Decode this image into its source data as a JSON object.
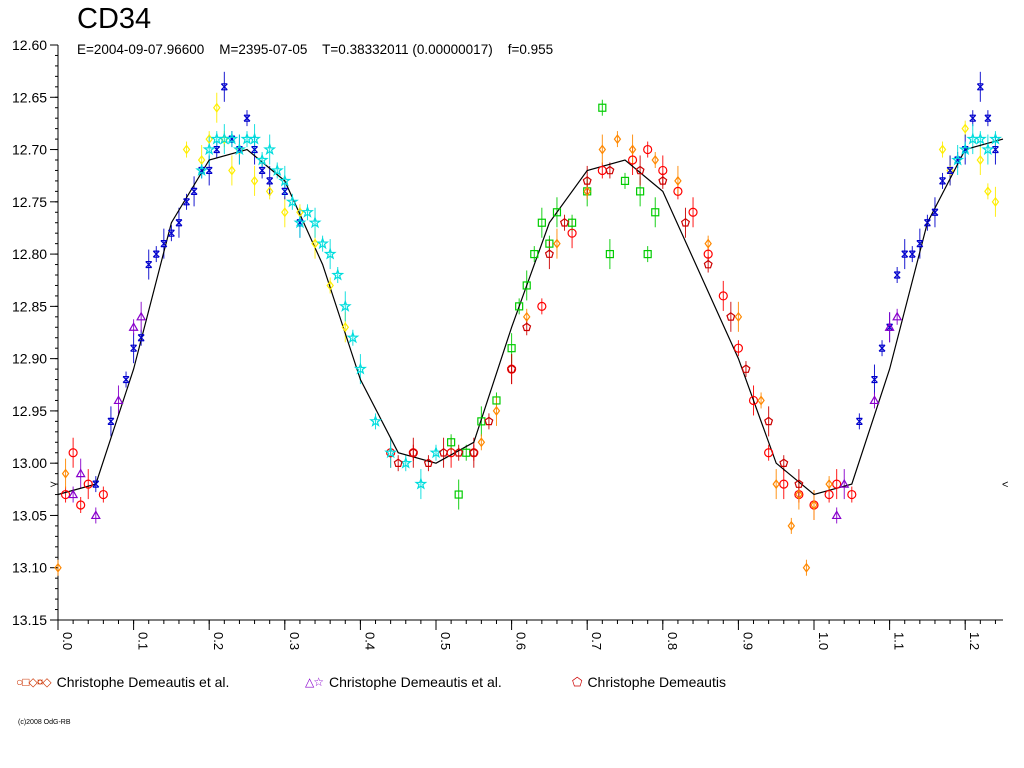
{
  "header": {
    "title": "CD34",
    "subtitle": "E=2004-09-07.96600    M=2395-07-05    T=0.38332011 (0.00000017)    f=0.955"
  },
  "legend": [
    {
      "symbols": "○□◇¤◇",
      "label": "Christophe Demeautis et al."
    },
    {
      "symbols": "△☆",
      "label": "Christophe Demeautis et al."
    },
    {
      "symbols": "⬠",
      "label": "Christophe Demeautis"
    }
  ],
  "copyright": "(c)2008 OdG-RB",
  "chart_data": {
    "type": "scatter",
    "title": "CD34",
    "xlabel": "",
    "ylabel": "",
    "xlim": [
      0.0,
      1.25
    ],
    "ylim": [
      13.15,
      12.6
    ],
    "y_inverted": true,
    "x_ticks": [
      "0.0",
      "0.1",
      "0.2",
      "0.3",
      "0.4",
      "0.5",
      "0.6",
      "0.7",
      "0.8",
      "0.9",
      "1.0",
      "1.1",
      "1.2"
    ],
    "y_ticks": [
      "12.60",
      "12.65",
      "12.70",
      "12.75",
      "12.80",
      "12.85",
      "12.90",
      "12.95",
      "13.00",
      "13.05",
      "13.10",
      "13.15"
    ],
    "grid": false,
    "legend_position": "bottom",
    "fit_curve": {
      "x": [
        0.0,
        0.05,
        0.1,
        0.15,
        0.2,
        0.25,
        0.3,
        0.35,
        0.4,
        0.45,
        0.5,
        0.55,
        0.6,
        0.65,
        0.7,
        0.75,
        0.8,
        0.85,
        0.9,
        0.95,
        1.0,
        1.05,
        1.1,
        1.15,
        1.2,
        1.25
      ],
      "y": [
        13.03,
        13.02,
        12.91,
        12.77,
        12.71,
        12.7,
        12.73,
        12.81,
        12.92,
        12.99,
        13.0,
        12.98,
        12.87,
        12.77,
        12.72,
        12.71,
        12.74,
        12.82,
        12.9,
        13.0,
        13.03,
        13.02,
        12.91,
        12.77,
        12.7,
        12.69
      ]
    },
    "series": [
      {
        "color": "#ff0000",
        "marker": "circle",
        "x": [
          0.01,
          0.02,
          0.03,
          0.04,
          0.06,
          0.44,
          0.47,
          0.52,
          0.55,
          0.6,
          0.64,
          0.68,
          0.72,
          0.76,
          0.78,
          0.8,
          0.82,
          0.84,
          0.86,
          0.88,
          0.9,
          0.92,
          0.94,
          0.96,
          0.98,
          1.0,
          1.02,
          1.03,
          1.05
        ],
        "y": [
          13.03,
          12.99,
          13.04,
          13.02,
          13.03,
          12.99,
          12.99,
          12.99,
          12.99,
          12.91,
          12.85,
          12.78,
          12.72,
          12.71,
          12.7,
          12.72,
          12.74,
          12.76,
          12.8,
          12.84,
          12.89,
          12.94,
          12.99,
          13.02,
          13.03,
          13.04,
          13.03,
          13.02,
          13.03
        ]
      },
      {
        "color": "#00cc00",
        "marker": "square",
        "x": [
          0.52,
          0.53,
          0.54,
          0.56,
          0.58,
          0.6,
          0.61,
          0.62,
          0.63,
          0.64,
          0.65,
          0.66,
          0.68,
          0.7,
          0.72,
          0.73,
          0.75,
          0.77,
          0.78,
          0.79
        ],
        "y": [
          12.98,
          13.03,
          12.99,
          12.96,
          12.94,
          12.89,
          12.85,
          12.83,
          12.8,
          12.77,
          12.79,
          12.76,
          12.77,
          12.74,
          12.66,
          12.8,
          12.73,
          12.74,
          12.8,
          12.76
        ]
      },
      {
        "color": "#ffee00",
        "marker": "diamond",
        "x": [
          0.17,
          0.19,
          0.2,
          0.21,
          0.22,
          0.23,
          0.24,
          0.26,
          0.28,
          0.3,
          0.32,
          0.34,
          0.36,
          0.38,
          1.17,
          1.18,
          1.2,
          1.22,
          1.23,
          1.24
        ],
        "y": [
          12.7,
          12.71,
          12.69,
          12.66,
          12.69,
          12.72,
          12.7,
          12.73,
          12.74,
          12.76,
          12.76,
          12.79,
          12.83,
          12.87,
          12.7,
          12.72,
          12.68,
          12.71,
          12.74,
          12.75
        ]
      },
      {
        "color": "#0000cc",
        "marker": "cross",
        "x": [
          0.05,
          0.07,
          0.09,
          0.1,
          0.11,
          0.12,
          0.13,
          0.14,
          0.15,
          0.16,
          0.17,
          0.18,
          0.19,
          0.2,
          0.21,
          0.22,
          0.23,
          0.24,
          0.25,
          0.26,
          0.27,
          0.28,
          0.3,
          0.32,
          1.06,
          1.08,
          1.09,
          1.1,
          1.11,
          1.12,
          1.13,
          1.14,
          1.15,
          1.16,
          1.17,
          1.18,
          1.19,
          1.2,
          1.21,
          1.22,
          1.23,
          1.24
        ],
        "y": [
          13.02,
          12.96,
          12.92,
          12.89,
          12.88,
          12.81,
          12.8,
          12.79,
          12.78,
          12.77,
          12.75,
          12.74,
          12.72,
          12.72,
          12.7,
          12.64,
          12.69,
          12.7,
          12.67,
          12.7,
          12.72,
          12.73,
          12.74,
          12.77,
          12.96,
          12.92,
          12.89,
          12.87,
          12.82,
          12.8,
          12.8,
          12.79,
          12.77,
          12.76,
          12.73,
          12.72,
          12.71,
          12.7,
          12.67,
          12.64,
          12.67,
          12.7
        ]
      },
      {
        "color": "#ff8800",
        "marker": "diamond",
        "x": [
          0.0,
          0.01,
          0.56,
          0.58,
          0.62,
          0.66,
          0.7,
          0.72,
          0.74,
          0.76,
          0.79,
          0.82,
          0.86,
          0.9,
          0.93,
          0.95,
          0.97,
          0.98,
          0.99,
          1.0,
          1.02
        ],
        "y": [
          13.1,
          13.01,
          12.98,
          12.95,
          12.86,
          12.79,
          12.74,
          12.7,
          12.69,
          12.7,
          12.71,
          12.73,
          12.79,
          12.86,
          12.94,
          13.02,
          13.06,
          13.03,
          13.1,
          13.04,
          13.02
        ]
      },
      {
        "color": "#8800cc",
        "marker": "triangle",
        "x": [
          0.02,
          0.03,
          0.05,
          0.08,
          0.1,
          0.11,
          1.03,
          1.04,
          1.08,
          1.1,
          1.11
        ],
        "y": [
          13.03,
          13.01,
          13.05,
          12.94,
          12.87,
          12.86,
          13.05,
          13.02,
          12.94,
          12.87,
          12.86
        ]
      },
      {
        "color": "#00dddd",
        "marker": "star",
        "x": [
          0.19,
          0.2,
          0.21,
          0.22,
          0.23,
          0.24,
          0.25,
          0.26,
          0.27,
          0.28,
          0.29,
          0.3,
          0.31,
          0.32,
          0.33,
          0.34,
          0.35,
          0.36,
          0.37,
          0.38,
          0.39,
          0.4,
          0.42,
          0.44,
          0.46,
          0.48,
          0.5,
          1.19,
          1.2,
          1.21,
          1.22,
          1.23,
          1.24
        ],
        "y": [
          12.72,
          12.7,
          12.69,
          12.69,
          12.69,
          12.7,
          12.69,
          12.69,
          12.71,
          12.7,
          12.72,
          12.73,
          12.75,
          12.77,
          12.76,
          12.77,
          12.79,
          12.8,
          12.82,
          12.85,
          12.88,
          12.91,
          12.96,
          12.99,
          13.0,
          13.02,
          12.99,
          12.71,
          12.7,
          12.69,
          12.69,
          12.7,
          12.69
        ]
      },
      {
        "color": "#cc0000",
        "marker": "pentagon",
        "x": [
          0.45,
          0.47,
          0.49,
          0.51,
          0.53,
          0.55,
          0.57,
          0.6,
          0.62,
          0.65,
          0.67,
          0.7,
          0.73,
          0.77,
          0.8,
          0.83,
          0.86,
          0.89,
          0.91,
          0.94,
          0.96,
          0.98
        ],
        "y": [
          13.0,
          12.99,
          13.0,
          12.99,
          12.99,
          12.99,
          12.96,
          12.91,
          12.87,
          12.8,
          12.77,
          12.73,
          12.72,
          12.72,
          12.73,
          12.77,
          12.81,
          12.86,
          12.91,
          12.96,
          13.0,
          13.02
        ]
      }
    ]
  }
}
